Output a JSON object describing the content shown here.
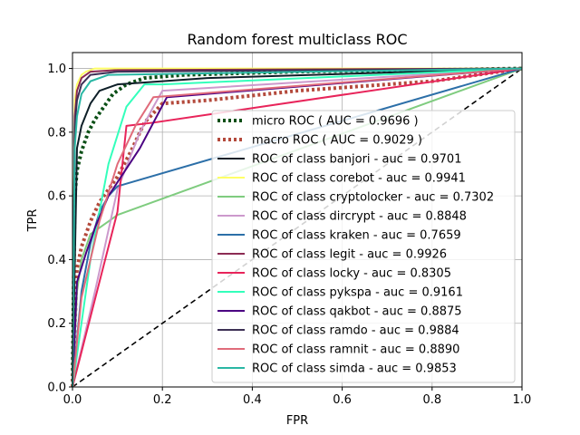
{
  "chart_data": {
    "type": "line",
    "title": "Random forest multiclass ROC",
    "xlabel": "FPR",
    "ylabel": "TPR",
    "xlim": [
      0,
      1
    ],
    "ylim": [
      0,
      1.05
    ],
    "xticks": [
      "0.0",
      "0.2",
      "0.4",
      "0.6",
      "0.8",
      "1.0"
    ],
    "yticks": [
      "0.0",
      "0.2",
      "0.4",
      "0.6",
      "0.8",
      "1.0"
    ],
    "grid": true,
    "legend_position": "lower-right",
    "series": [
      {
        "name": "micro ROC ( AUC = 0.9696 )",
        "color": "#0b4f16",
        "style": "dotted",
        "x": [
          0,
          0.005,
          0.01,
          0.02,
          0.035,
          0.05,
          0.07,
          0.09,
          0.12,
          0.16,
          0.25,
          0.5,
          1.0
        ],
        "y": [
          0,
          0.6,
          0.68,
          0.74,
          0.8,
          0.84,
          0.88,
          0.92,
          0.95,
          0.97,
          0.98,
          0.99,
          1.0
        ]
      },
      {
        "name": "macro ROC ( AUC = 0.9029 )",
        "color": "#b44a3c",
        "style": "dotted",
        "x": [
          0,
          0.01,
          0.02,
          0.04,
          0.06,
          0.08,
          0.1,
          0.13,
          0.16,
          0.2,
          0.3,
          0.5,
          0.8,
          1.0
        ],
        "y": [
          0,
          0.37,
          0.44,
          0.52,
          0.58,
          0.62,
          0.66,
          0.74,
          0.83,
          0.89,
          0.9,
          0.93,
          0.96,
          1.0
        ]
      },
      {
        "name": "ROC of class banjori - auc = 0.9701",
        "color": "#0e1f28",
        "style": "solid",
        "x": [
          0,
          0.01,
          0.02,
          0.04,
          0.06,
          0.1,
          0.3,
          1.0
        ],
        "y": [
          0,
          0.75,
          0.82,
          0.89,
          0.93,
          0.95,
          0.97,
          1.0
        ]
      },
      {
        "name": "ROC of class corebot - auc = 0.9941",
        "color": "#ffff66",
        "style": "solid",
        "x": [
          0,
          0.005,
          0.01,
          0.02,
          0.03,
          0.05,
          0.1,
          1.0
        ],
        "y": [
          0,
          0.9,
          0.95,
          0.98,
          0.99,
          1.0,
          1.0,
          1.0
        ]
      },
      {
        "name": "ROC of class cryptolocker - auc = 0.7302",
        "color": "#7fcc7f",
        "style": "solid",
        "x": [
          0,
          0.01,
          0.02,
          0.04,
          0.06,
          0.08,
          0.1,
          1.0
        ],
        "y": [
          0,
          0.3,
          0.4,
          0.48,
          0.5,
          0.52,
          0.54,
          1.0
        ]
      },
      {
        "name": "ROC of class dircrypt - auc = 0.8848",
        "color": "#cc99cc",
        "style": "solid",
        "x": [
          0,
          0.05,
          0.1,
          0.15,
          0.18,
          0.2,
          1.0
        ],
        "y": [
          0,
          0.3,
          0.62,
          0.8,
          0.88,
          0.93,
          1.0
        ]
      },
      {
        "name": "ROC of class kraken - auc = 0.7659",
        "color": "#2c6fa8",
        "style": "solid",
        "x": [
          0,
          0.02,
          0.04,
          0.06,
          0.08,
          0.1,
          1.0
        ],
        "y": [
          0,
          0.3,
          0.45,
          0.55,
          0.6,
          0.63,
          1.0
        ]
      },
      {
        "name": "ROC of class legit - auc = 0.9926",
        "color": "#8c2b53",
        "style": "solid",
        "x": [
          0,
          0.005,
          0.01,
          0.02,
          0.04,
          0.1,
          1.0
        ],
        "y": [
          0,
          0.85,
          0.93,
          0.97,
          0.99,
          0.995,
          1.0
        ]
      },
      {
        "name": "ROC of class locky - auc = 0.8305",
        "color": "#e8245a",
        "style": "solid",
        "x": [
          0,
          0.1,
          0.12,
          0.18,
          1.0
        ],
        "y": [
          0,
          0.55,
          0.82,
          0.83,
          1.0
        ]
      },
      {
        "name": "ROC of class pykspa - auc = 0.9161",
        "color": "#33ffbb",
        "style": "solid",
        "x": [
          0,
          0.04,
          0.08,
          0.12,
          0.16,
          0.2,
          1.0
        ],
        "y": [
          0,
          0.4,
          0.7,
          0.88,
          0.95,
          0.95,
          1.0
        ]
      },
      {
        "name": "ROC of class qakbot - auc = 0.8875",
        "color": "#4b0082",
        "style": "solid",
        "x": [
          0,
          0.01,
          0.03,
          0.05,
          0.08,
          0.15,
          0.21,
          1.0
        ],
        "y": [
          0,
          0.33,
          0.42,
          0.5,
          0.6,
          0.75,
          0.91,
          1.0
        ]
      },
      {
        "name": "ROC of class ramdo - auc = 0.9884",
        "color": "#3d3055",
        "style": "solid",
        "x": [
          0,
          0.005,
          0.01,
          0.02,
          0.04,
          0.1,
          1.0
        ],
        "y": [
          0,
          0.82,
          0.9,
          0.95,
          0.98,
          0.99,
          1.0
        ]
      },
      {
        "name": "ROC of class ramnit - auc = 0.8890",
        "color": "#e06b7a",
        "style": "solid",
        "x": [
          0,
          0.02,
          0.06,
          0.1,
          0.14,
          0.18,
          1.0
        ],
        "y": [
          0,
          0.28,
          0.52,
          0.7,
          0.82,
          0.91,
          1.0
        ]
      },
      {
        "name": "ROC of class simda - auc = 0.9853",
        "color": "#2ab7a4",
        "style": "solid",
        "x": [
          0,
          0.005,
          0.01,
          0.02,
          0.04,
          0.08,
          1.0
        ],
        "y": [
          0,
          0.75,
          0.85,
          0.92,
          0.96,
          0.98,
          1.0
        ]
      }
    ],
    "reference_line": {
      "x": [
        0,
        1
      ],
      "y": [
        0,
        1
      ],
      "color": "#000000",
      "style": "dashed"
    }
  }
}
